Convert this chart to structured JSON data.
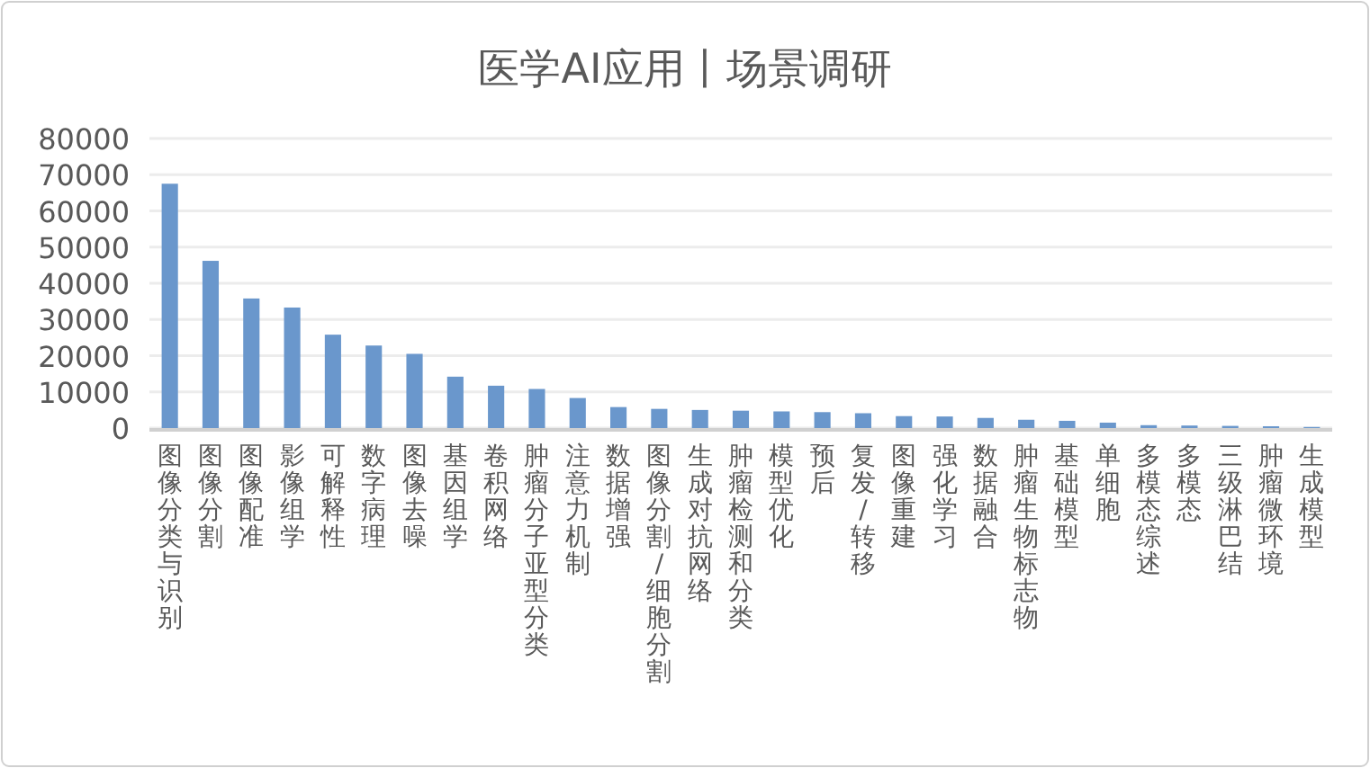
{
  "chart_data": {
    "type": "bar",
    "title": "医学AI应用丨场景调研",
    "categories": [
      "图像分类与识别",
      "图像分割",
      "图像配准",
      "影像组学",
      "可解释性",
      "数字病理",
      "图像去噪",
      "基因组学",
      "卷积网络",
      "肿瘤分子亚型分类",
      "注意力机制",
      "数据增强",
      "图像分割/细胞分割",
      "生成对抗网络",
      "肿瘤检测和分类",
      "模型优化",
      "预后",
      "复发/转移",
      "图像重建",
      "强化学习",
      "数据融合",
      "肿瘤生物标志物",
      "基础模型",
      "单细胞",
      "多模态综述",
      "多模态",
      "三级淋巴结",
      "肿瘤微环境",
      "生成模型"
    ],
    "values": [
      67500,
      46200,
      35800,
      33300,
      25800,
      22800,
      20500,
      14200,
      11700,
      10800,
      8300,
      5800,
      5300,
      5000,
      4800,
      4600,
      4400,
      4100,
      3300,
      3200,
      2800,
      2300,
      2000,
      1500,
      800,
      700,
      600,
      500,
      300
    ],
    "color": "#6a97cc",
    "ylim": [
      0,
      80000
    ],
    "yticks": [
      0,
      10000,
      20000,
      30000,
      40000,
      50000,
      60000,
      70000,
      80000
    ],
    "grid": "y"
  }
}
